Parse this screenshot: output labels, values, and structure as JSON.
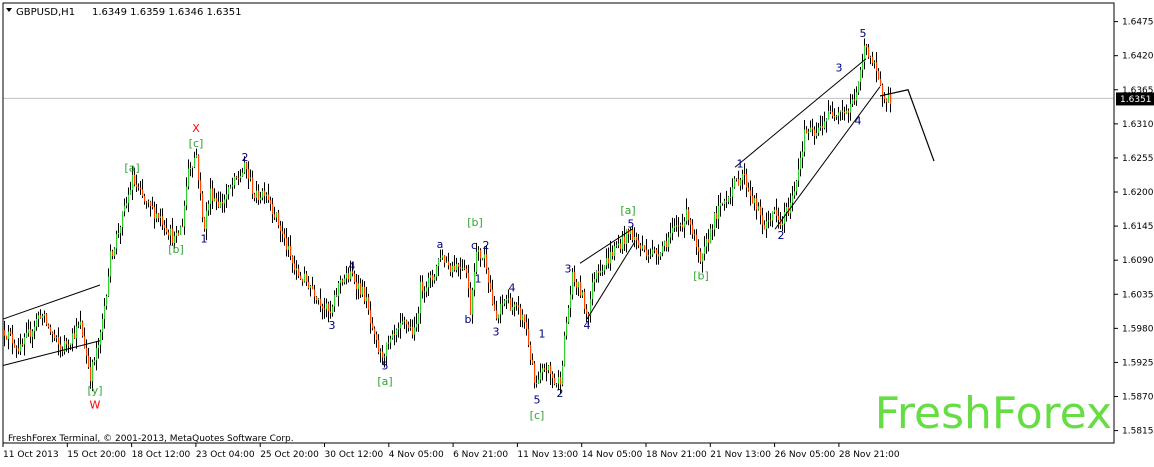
{
  "header": {
    "symbol": "GBPUSD,H1",
    "ohlc": "1.6349 1.6359 1.6346 1.6351"
  },
  "footer": {
    "copyright": "FreshForex Terminal, © 2001-2013, MetaQuotes Software Corp."
  },
  "watermark": "FreshForex",
  "colors": {
    "bull": "#32cd32",
    "bear": "#ff4500",
    "wick": "#000000",
    "wave_blue": "#000080",
    "wave_green": "#32a532",
    "wave_red": "#ff0000",
    "watermark": "#66dd44"
  },
  "chart_data": {
    "type": "candlestick",
    "instrument": "GBPUSD",
    "timeframe": "H1",
    "current_price": 1.6351,
    "current_price_label": "1.6351",
    "ylim": [
      1.5795,
      1.6505
    ],
    "y_ticks": [
      "1.6475",
      "1.6420",
      "1.6365",
      "1.6310",
      "1.6255",
      "1.6200",
      "1.6145",
      "1.6090",
      "1.6035",
      "1.5980",
      "1.5925",
      "1.5870",
      "1.5815"
    ],
    "x_ticks": [
      "11 Oct 2013",
      "15 Oct 20:00",
      "18 Oct 12:00",
      "23 Oct 04:00",
      "25 Oct 20:00",
      "30 Oct 12:00",
      "4 Nov 05:00",
      "6 Nov 21:00",
      "11 Nov 13:00",
      "14 Nov 05:00",
      "18 Nov 21:00",
      "21 Nov 13:00",
      "26 Nov 05:00",
      "28 Nov 21:00"
    ],
    "price_path": [
      [
        0,
        1.5985
      ],
      [
        20,
        1.5945
      ],
      [
        40,
        1.6005
      ],
      [
        60,
        1.5945
      ],
      [
        80,
        1.5985
      ],
      [
        90,
        1.5905
      ],
      [
        100,
        1.5965
      ],
      [
        110,
        1.6095
      ],
      [
        125,
        1.6175
      ],
      [
        132,
        1.622
      ],
      [
        145,
        1.618
      ],
      [
        160,
        1.616
      ],
      [
        175,
        1.612
      ],
      [
        182,
        1.615
      ],
      [
        188,
        1.624
      ],
      [
        196,
        1.626
      ],
      [
        203,
        1.614
      ],
      [
        210,
        1.62
      ],
      [
        220,
        1.618
      ],
      [
        232,
        1.621
      ],
      [
        245,
        1.624
      ],
      [
        255,
        1.619
      ],
      [
        265,
        1.6205
      ],
      [
        280,
        1.614
      ],
      [
        295,
        1.607
      ],
      [
        310,
        1.605
      ],
      [
        330,
        1.6
      ],
      [
        340,
        1.606
      ],
      [
        352,
        1.6065
      ],
      [
        365,
        1.603
      ],
      [
        372,
        1.597
      ],
      [
        380,
        1.5935
      ],
      [
        392,
        1.596
      ],
      [
        405,
        1.599
      ],
      [
        415,
        1.597
      ],
      [
        420,
        1.6045
      ],
      [
        432,
        1.606
      ],
      [
        440,
        1.61
      ],
      [
        450,
        1.608
      ],
      [
        465,
        1.6085
      ],
      [
        470,
        1.601
      ],
      [
        475,
        1.61
      ],
      [
        485,
        1.6095
      ],
      [
        495,
        1.599
      ],
      [
        505,
        1.603
      ],
      [
        515,
        1.601
      ],
      [
        525,
        1.599
      ],
      [
        535,
        1.588
      ],
      [
        545,
        1.592
      ],
      [
        555,
        1.589
      ],
      [
        560,
        1.59
      ],
      [
        566,
        1.599
      ],
      [
        572,
        1.606
      ],
      [
        580,
        1.604
      ],
      [
        587,
        1.6
      ],
      [
        595,
        1.6075
      ],
      [
        605,
        1.6085
      ],
      [
        615,
        1.611
      ],
      [
        630,
        1.6135
      ],
      [
        640,
        1.611
      ],
      [
        655,
        1.61
      ],
      [
        670,
        1.613
      ],
      [
        688,
        1.6165
      ],
      [
        700,
        1.608
      ],
      [
        712,
        1.615
      ],
      [
        725,
        1.619
      ],
      [
        742,
        1.623
      ],
      [
        752,
        1.619
      ],
      [
        765,
        1.614
      ],
      [
        772,
        1.617
      ],
      [
        780,
        1.6145
      ],
      [
        792,
        1.619
      ],
      [
        805,
        1.63
      ],
      [
        815,
        1.629
      ],
      [
        825,
        1.632
      ],
      [
        838,
        1.6335
      ],
      [
        848,
        1.633
      ],
      [
        858,
        1.637
      ],
      [
        865,
        1.644
      ],
      [
        872,
        1.641
      ],
      [
        880,
        1.6365
      ],
      [
        890,
        1.635
      ]
    ],
    "wave_labels": [
      {
        "text": "[y]",
        "x": 95,
        "price": 1.589,
        "pos": "below",
        "color": "green"
      },
      {
        "text": "W",
        "x": 95,
        "price": 1.5867,
        "pos": "below",
        "color": "red"
      },
      {
        "text": "[a]",
        "x": 132,
        "price": 1.6228,
        "pos": "above",
        "color": "green"
      },
      {
        "text": "[b]",
        "x": 176,
        "price": 1.6118,
        "pos": "below",
        "color": "green"
      },
      {
        "text": "[c]",
        "x": 196,
        "price": 1.6268,
        "pos": "above",
        "color": "green"
      },
      {
        "text": "X",
        "x": 196,
        "price": 1.6292,
        "pos": "above",
        "color": "red"
      },
      {
        "text": "1",
        "x": 204,
        "price": 1.6135,
        "pos": "below",
        "color": "blue"
      },
      {
        "text": "2",
        "x": 245,
        "price": 1.6245,
        "pos": "above",
        "color": "blue"
      },
      {
        "text": "3",
        "x": 332,
        "price": 1.5995,
        "pos": "below",
        "color": "blue"
      },
      {
        "text": "4",
        "x": 352,
        "price": 1.607,
        "pos": "above",
        "color": "blue"
      },
      {
        "text": "5",
        "x": 385,
        "price": 1.593,
        "pos": "below",
        "color": "blue"
      },
      {
        "text": "[a]",
        "x": 385,
        "price": 1.5905,
        "pos": "below",
        "color": "green"
      },
      {
        "text": "a",
        "x": 440,
        "price": 1.6105,
        "pos": "above",
        "color": "blue"
      },
      {
        "text": "b",
        "x": 468,
        "price": 1.6005,
        "pos": "below",
        "color": "blue"
      },
      {
        "text": "[b]",
        "x": 475,
        "price": 1.614,
        "pos": "above",
        "color": "green"
      },
      {
        "text": "c",
        "x": 474,
        "price": 1.6103,
        "pos": "above",
        "color": "blue"
      },
      {
        "text": "2",
        "x": 486,
        "price": 1.6103,
        "pos": "above",
        "color": "blue"
      },
      {
        "text": "1",
        "x": 478,
        "price": 1.607,
        "pos": "below",
        "color": "blue"
      },
      {
        "text": "3",
        "x": 496,
        "price": 1.5985,
        "pos": "below",
        "color": "blue"
      },
      {
        "text": "4",
        "x": 512,
        "price": 1.6035,
        "pos": "above",
        "color": "blue"
      },
      {
        "text": "1",
        "x": 542,
        "price": 1.596,
        "pos": "above",
        "color": "blue"
      },
      {
        "text": "5",
        "x": 537,
        "price": 1.5875,
        "pos": "below",
        "color": "blue"
      },
      {
        "text": "[c]",
        "x": 537,
        "price": 1.585,
        "pos": "below",
        "color": "green"
      },
      {
        "text": "2",
        "x": 560,
        "price": 1.5885,
        "pos": "below",
        "color": "blue"
      },
      {
        "text": "3",
        "x": 568,
        "price": 1.6065,
        "pos": "above",
        "color": "blue"
      },
      {
        "text": "4",
        "x": 587,
        "price": 1.5995,
        "pos": "below",
        "color": "blue"
      },
      {
        "text": "5",
        "x": 631,
        "price": 1.6138,
        "pos": "above",
        "color": "blue"
      },
      {
        "text": "[a]",
        "x": 628,
        "price": 1.616,
        "pos": "above",
        "color": "green"
      },
      {
        "text": "[b]",
        "x": 701,
        "price": 1.6075,
        "pos": "below",
        "color": "green"
      },
      {
        "text": "1",
        "x": 740,
        "price": 1.6235,
        "pos": "above",
        "color": "blue"
      },
      {
        "text": "2",
        "x": 781,
        "price": 1.614,
        "pos": "below",
        "color": "blue"
      },
      {
        "text": "3",
        "x": 839,
        "price": 1.639,
        "pos": "above",
        "color": "blue"
      },
      {
        "text": "4",
        "x": 858,
        "price": 1.6325,
        "pos": "below",
        "color": "blue"
      },
      {
        "text": "5",
        "x": 863,
        "price": 1.6445,
        "pos": "above",
        "color": "blue"
      }
    ],
    "trend_lines": [
      [
        [
          3,
          1.5995
        ],
        [
          100,
          1.605
        ]
      ],
      [
        [
          3,
          1.592
        ],
        [
          100,
          1.596
        ]
      ],
      [
        [
          580,
          1.6085
        ],
        [
          632,
          1.614
        ]
      ],
      [
        [
          587,
          1.5995
        ],
        [
          635,
          1.612
        ]
      ],
      [
        [
          735,
          1.624
        ],
        [
          866,
          1.6415
        ]
      ],
      [
        [
          775,
          1.614
        ],
        [
          880,
          1.637
        ]
      ]
    ],
    "forecast_path": [
      [
        880,
        1.6355
      ],
      [
        908,
        1.6365
      ],
      [
        934,
        1.625
      ]
    ]
  }
}
